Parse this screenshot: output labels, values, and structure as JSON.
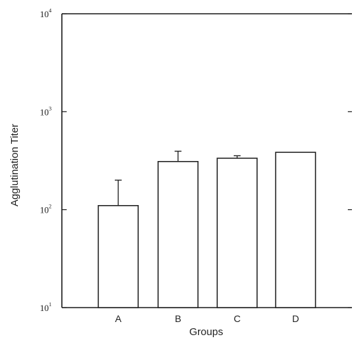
{
  "chart_data": {
    "type": "bar",
    "title": "",
    "xlabel": "Groups",
    "ylabel": "Agglutination Titer",
    "yscale": "log",
    "ylim": [
      10,
      10000
    ],
    "yticks": [
      {
        "value": 10,
        "base": "10",
        "exp": "1"
      },
      {
        "value": 100,
        "base": "10",
        "exp": "2"
      },
      {
        "value": 1000,
        "base": "10",
        "exp": "3"
      },
      {
        "value": 10000,
        "base": "10",
        "exp": "4"
      }
    ],
    "categories": [
      "A",
      "B",
      "C",
      "D"
    ],
    "values": [
      110,
      310,
      335,
      385
    ],
    "error_upper": [
      200,
      395,
      355,
      390
    ],
    "grid": false,
    "bar_fill": "#ffffff",
    "line_color": "#1a1a1a"
  }
}
